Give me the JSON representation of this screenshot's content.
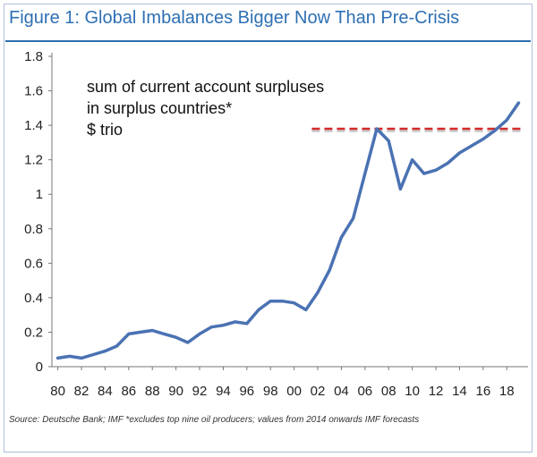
{
  "title": "Figure 1: Global Imbalances Bigger Now Than Pre-Crisis",
  "source": "Source: Deutsche Bank; IMF *excludes top nine oil producers; values from 2014 onwards IMF forecasts",
  "annotation": {
    "line1": "sum of current account surpluses",
    "line2": "in surplus countries*",
    "line3": "$ trio"
  },
  "colors": {
    "title": "#2e6fb3",
    "line": "#4a72b3",
    "reference": "#d42a2a"
  },
  "chart_data": {
    "type": "line",
    "title": "Figure 1: Global Imbalances Bigger Now Than Pre-Crisis",
    "xlabel": "",
    "ylabel": "",
    "ylim": [
      0,
      1.8
    ],
    "xlim": [
      1980,
      2019
    ],
    "grid": false,
    "yticks": [
      "0",
      "0.2",
      "0.4",
      "0.6",
      "0.8",
      "1",
      "1.2",
      "1.4",
      "1.6",
      "1.8"
    ],
    "xticks": [
      "80",
      "82",
      "84",
      "86",
      "88",
      "90",
      "92",
      "94",
      "96",
      "98",
      "00",
      "02",
      "04",
      "06",
      "08",
      "10",
      "12",
      "14",
      "16",
      "18"
    ],
    "series": [
      {
        "x": [
          1980,
          1981,
          1982,
          1983,
          1984,
          1985,
          1986,
          1987,
          1988,
          1989,
          1990,
          1991,
          1992,
          1993,
          1994,
          1995,
          1996,
          1997,
          1998,
          1999,
          2000,
          2001,
          2002,
          2003,
          2004,
          2005,
          2006,
          2007,
          2008,
          2009,
          2010,
          2011,
          2012,
          2013,
          2014,
          2015,
          2016,
          2017,
          2018,
          2019
        ],
        "values": [
          0.05,
          0.06,
          0.05,
          0.07,
          0.09,
          0.12,
          0.19,
          0.2,
          0.21,
          0.19,
          0.17,
          0.14,
          0.19,
          0.23,
          0.24,
          0.26,
          0.25,
          0.33,
          0.38,
          0.38,
          0.37,
          0.33,
          0.43,
          0.56,
          0.75,
          0.86,
          1.12,
          1.38,
          1.31,
          1.03,
          1.2,
          1.12,
          1.14,
          1.18,
          1.24,
          1.28,
          1.32,
          1.37,
          1.43,
          1.53
        ]
      }
    ],
    "reference_line": {
      "value": 1.38,
      "x_start": 2001.5,
      "x_end": 2019.3,
      "style": "dashed"
    }
  }
}
